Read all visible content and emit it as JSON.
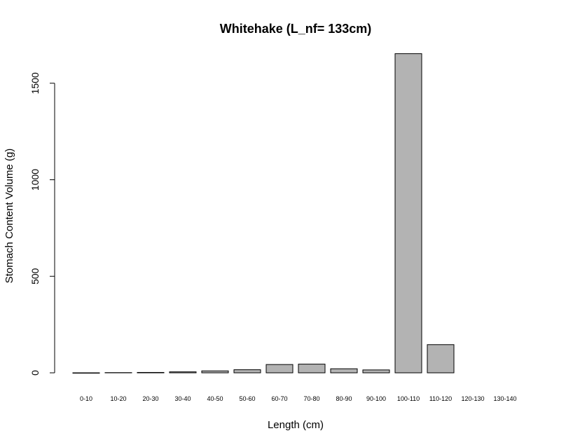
{
  "chart_data": {
    "type": "bar",
    "title": "Whitehake (L_nf= 133cm)",
    "xlabel": "Length (cm)",
    "ylabel": "Stomach Content Volume (g)",
    "categories": [
      "0-10",
      "10-20",
      "20-30",
      "30-40",
      "40-50",
      "50-60",
      "60-70",
      "70-80",
      "80-90",
      "90-100",
      "100-110",
      "110-120",
      "120-130",
      "130-140"
    ],
    "values": [
      0,
      1,
      2,
      5,
      10,
      16,
      43,
      45,
      21,
      15,
      1653,
      146,
      0,
      0
    ],
    "ylim": [
      0,
      1700
    ],
    "yticks": [
      0,
      500,
      1000,
      1500
    ],
    "ytick_labels": [
      "0",
      "500",
      "1000",
      "1500"
    ],
    "bar_color": "#b3b3b3",
    "grid": false
  }
}
